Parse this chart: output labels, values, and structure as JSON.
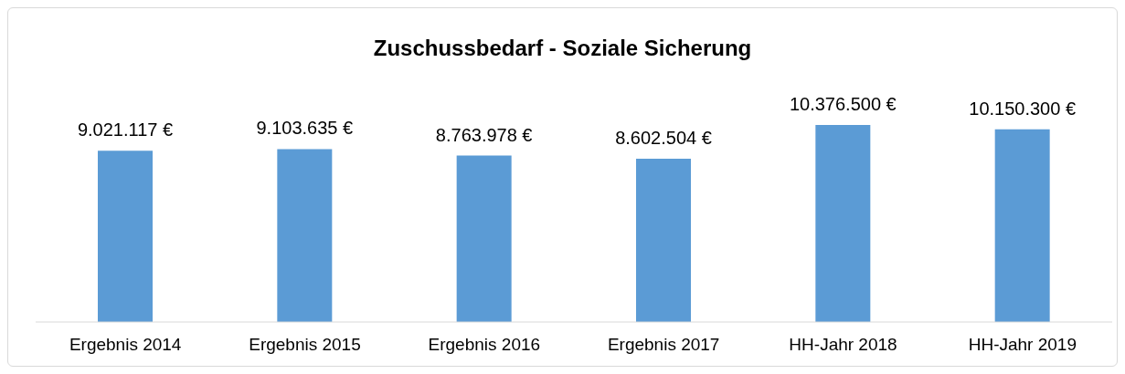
{
  "chart_data": {
    "type": "bar",
    "title": "Zuschussbedarf - Soziale Sicherung",
    "categories": [
      "Ergebnis 2014",
      "Ergebnis 2015",
      "Ergebnis 2016",
      "Ergebnis 2017",
      "HH-Jahr 2018",
      "HH-Jahr 2019"
    ],
    "values": [
      9021117,
      9103635,
      8763978,
      8602504,
      10376500,
      10150300
    ],
    "value_labels": [
      "9.021.117 €",
      "9.103.635 €",
      "8.763.978 €",
      "8.602.504 €",
      "10.376.500 €",
      "10.150.300 €"
    ],
    "color": "#5b9bd5",
    "grid": false,
    "legend": false
  }
}
